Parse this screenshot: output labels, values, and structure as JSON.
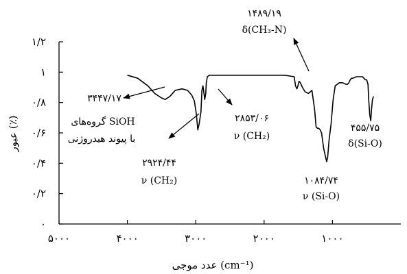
{
  "chart_data": {
    "type": "line",
    "title": "",
    "xlabel": "عدد موجی (cm⁻¹)",
    "ylabel": "عبور (٪)",
    "xlim": [
      5000,
      0
    ],
    "ylim": [
      0,
      1.2
    ],
    "x_reversed": true,
    "grid": false,
    "x_ticks": [
      {
        "value": 5000,
        "label": "۵۰۰۰"
      },
      {
        "value": 4000,
        "label": "۴۰۰۰"
      },
      {
        "value": 3000,
        "label": "۳۰۰۰"
      },
      {
        "value": 2000,
        "label": "۲۰۰۰"
      },
      {
        "value": 1000,
        "label": "۱۰۰۰"
      }
    ],
    "y_ticks": [
      {
        "value": 0,
        "label": "۰"
      },
      {
        "value": 0.2,
        "label": "۰/۲"
      },
      {
        "value": 0.4,
        "label": "۰/۴"
      },
      {
        "value": 0.6,
        "label": "۰/۶"
      },
      {
        "value": 0.8,
        "label": "۰/۸"
      },
      {
        "value": 1.0,
        "label": "۱"
      },
      {
        "value": 1.2,
        "label": "۱/۲"
      }
    ],
    "series": [
      {
        "x": [
          4000,
          3850,
          3700,
          3600,
          3500,
          3447,
          3380,
          3300,
          3200,
          3120,
          3060,
          3020,
          2990,
          2970,
          2950,
          2924,
          2910,
          2895,
          2880,
          2868,
          2853,
          2845,
          2830,
          2800,
          2700,
          2500,
          2300,
          2000,
          1700,
          1560,
          1540,
          1520,
          1505,
          1489,
          1470,
          1440,
          1400,
          1350,
          1300,
          1260,
          1240,
          1220,
          1200,
          1180,
          1160,
          1130,
          1100,
          1084,
          1070,
          1050,
          1020,
          990,
          960,
          900,
          850,
          800,
          780,
          760,
          740,
          720,
          700,
          650,
          600,
          560,
          540,
          520,
          500,
          480,
          470,
          455,
          440,
          430,
          415,
          400
        ],
        "y": [
          0.98,
          0.96,
          0.91,
          0.86,
          0.83,
          0.82,
          0.84,
          0.88,
          0.89,
          0.88,
          0.85,
          0.81,
          0.72,
          0.62,
          0.66,
          0.74,
          0.88,
          0.91,
          0.86,
          0.82,
          0.86,
          0.93,
          0.97,
          0.98,
          0.98,
          0.98,
          0.98,
          0.98,
          0.98,
          0.97,
          0.91,
          0.89,
          0.91,
          0.94,
          0.93,
          0.9,
          0.87,
          0.86,
          0.88,
          0.75,
          0.64,
          0.63,
          0.63,
          0.62,
          0.6,
          0.5,
          0.44,
          0.41,
          0.44,
          0.55,
          0.66,
          0.82,
          0.91,
          0.93,
          0.93,
          0.92,
          0.92,
          0.93,
          0.95,
          0.96,
          0.96,
          0.97,
          0.97,
          0.97,
          0.96,
          0.95,
          0.95,
          0.92,
          0.82,
          0.72,
          0.68,
          0.75,
          0.82,
          0.84
        ]
      }
    ],
    "annotations": [
      {
        "id": "ann-3447",
        "lines": [
          "۳۴۴۷/۱۷",
          "گروه‌های SiOH",
          "با پیوند هیدروژنی"
        ]
      },
      {
        "id": "ann-2924",
        "lines": [
          "۲۹۲۴/۴۴",
          "ν (CH₂)"
        ]
      },
      {
        "id": "ann-2853",
        "lines": [
          "۲۸۵۳/۰۶",
          "ν (CH₂)"
        ]
      },
      {
        "id": "ann-1489",
        "lines": [
          "۱۴۸۹/۱۹",
          "δ(CH₃-N)"
        ]
      },
      {
        "id": "ann-1084",
        "lines": [
          "۱۰۸۴/۷۴",
          "ν (Si-O)"
        ]
      },
      {
        "id": "ann-455",
        "lines": [
          "۴۵۵/۷۵",
          "δ(Si-O)"
        ]
      }
    ]
  }
}
